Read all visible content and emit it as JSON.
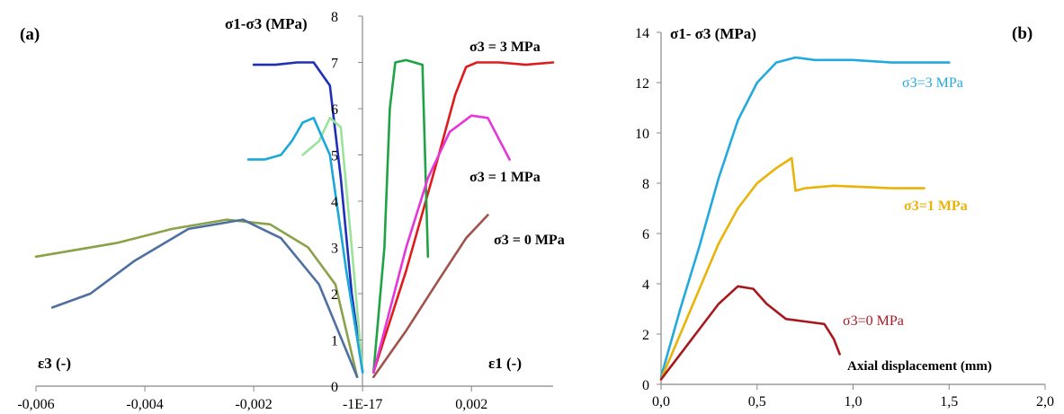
{
  "colors": {
    "blue_dark": "#1f2fb8",
    "green": "#1fa344",
    "red": "#e01b1b",
    "cyan": "#1aa7db",
    "light_green": "#9be39a",
    "magenta": "#e536d9",
    "olive": "#8aa24a",
    "steel_blue": "#4e6fa0",
    "brown": "#a0524c",
    "orange": "#e8b40a",
    "dark_red": "#a8191f",
    "cyan_b": "#24a9df"
  },
  "panel_a": {
    "panel_label": "(a)",
    "ylabel": "σ1-σ3 (MPa)",
    "xlabel_left": "ε3 (-)",
    "xlabel_right": "ε1 (-)",
    "label_s3_3": "σ3 = 3 MPa",
    "label_s3_1": "σ3 = 1 MPa",
    "label_s3_0": "σ3 = 0 MPa"
  },
  "panel_b": {
    "panel_label": "(b)",
    "ylabel": "σ1- σ3 (MPa)",
    "xlabel": "Axial displacement (mm)",
    "label_s3_3": "σ3=3 MPa",
    "label_s3_1": "σ3=1 MPa",
    "label_s3_0": "σ3=0 MPa"
  },
  "chart_data": [
    {
      "type": "line",
      "panel": "(a)",
      "ylabel": "σ1-σ3 (MPa)",
      "xlabel": "ε3 (-) / ε1 (-)",
      "xlim": [
        -0.006,
        0.0035
      ],
      "ylim": [
        0,
        8
      ],
      "x_ticks": [
        "-0,006",
        "-0,004",
        "-0,002",
        "-1E-17",
        "0,002"
      ],
      "y_ticks": [
        "0",
        "1",
        "2",
        "3",
        "4",
        "5",
        "6",
        "7",
        "8"
      ],
      "series": [
        {
          "name": "σ3 = 3 MPa",
          "color": "#e01b1b",
          "x": [
            0.0002,
            0.0008,
            0.0014,
            0.0017,
            0.0019,
            0.0021,
            0.0025,
            0.003,
            0.0035
          ],
          "y": [
            0.3,
            2.5,
            5.0,
            6.3,
            6.9,
            7.0,
            7.0,
            6.95,
            7.0
          ]
        },
        {
          "name": "σ3 = 3 MPa",
          "color": "#1fa344",
          "x": [
            0.0002,
            0.0004,
            0.0005,
            0.0006,
            0.0008,
            0.0011,
            0.0012
          ],
          "y": [
            0.3,
            3.0,
            6.0,
            7.0,
            7.05,
            6.95,
            2.8
          ]
        },
        {
          "name": "σ3 = 3 MPa",
          "color": "#1f2fb8",
          "x": [
            0.0,
            -0.0002,
            -0.0004,
            -0.0006,
            -0.0009,
            -0.0012,
            -0.0016,
            -0.002
          ],
          "y": [
            0.3,
            2.0,
            4.5,
            6.5,
            7.0,
            7.0,
            6.95,
            6.95
          ]
        },
        {
          "name": "σ3 = 1 MPa",
          "color": "#e536d9",
          "x": [
            0.0002,
            0.0008,
            0.0012,
            0.0016,
            0.002,
            0.0023,
            0.0027
          ],
          "y": [
            0.3,
            3.0,
            4.5,
            5.5,
            5.85,
            5.8,
            4.9
          ]
        },
        {
          "name": "σ3 = 1 MPa",
          "color": "#9be39a",
          "x": [
            0.0,
            -0.0002,
            -0.0004,
            -0.0006,
            -0.0008,
            -0.0011
          ],
          "y": [
            0.3,
            3.0,
            5.6,
            5.8,
            5.3,
            5.0
          ]
        },
        {
          "name": "σ3 = 1 MPa",
          "color": "#1aa7db",
          "x": [
            0.0,
            -0.0003,
            -0.0006,
            -0.0009,
            -0.0011,
            -0.0013,
            -0.0015,
            -0.0018,
            -0.0021
          ],
          "y": [
            0.3,
            2.5,
            5.0,
            5.8,
            5.7,
            5.3,
            5.0,
            4.9,
            4.9
          ]
        },
        {
          "name": "σ3 = 0 MPa",
          "color": "#a0524c",
          "x": [
            0.0002,
            0.0008,
            0.0014,
            0.0019,
            0.0023
          ],
          "y": [
            0.2,
            1.2,
            2.3,
            3.2,
            3.7
          ]
        },
        {
          "name": "σ3 = 0 MPa",
          "color": "#8aa24a",
          "x": [
            -0.0001,
            -0.0005,
            -0.001,
            -0.0017,
            -0.0025,
            -0.0035,
            -0.0045,
            -0.006
          ],
          "y": [
            0.2,
            2.2,
            3.0,
            3.5,
            3.6,
            3.4,
            3.1,
            2.8
          ]
        },
        {
          "name": "σ3 = 0 MPa",
          "color": "#4e6fa0",
          "x": [
            -0.0001,
            -0.0008,
            -0.0015,
            -0.0022,
            -0.0032,
            -0.0042,
            -0.005,
            -0.0057
          ],
          "y": [
            0.2,
            2.2,
            3.2,
            3.6,
            3.4,
            2.7,
            2.0,
            1.7
          ]
        }
      ]
    },
    {
      "type": "line",
      "panel": "(b)",
      "ylabel": "σ1- σ3 (MPa)",
      "xlabel": "Axial displacement (mm)",
      "xlim": [
        0,
        2.0
      ],
      "ylim": [
        0,
        14
      ],
      "x_ticks": [
        "0,0",
        "0,5",
        "1,0",
        "1,5",
        "2,0"
      ],
      "y_ticks": [
        "0",
        "2",
        "4",
        "6",
        "8",
        "10",
        "12",
        "14"
      ],
      "series": [
        {
          "name": "σ3=3 MPa",
          "color": "#24a9df",
          "x": [
            0.0,
            0.1,
            0.2,
            0.3,
            0.4,
            0.5,
            0.6,
            0.7,
            0.8,
            1.0,
            1.2,
            1.5
          ],
          "y": [
            0.3,
            3.0,
            5.5,
            8.2,
            10.5,
            12.0,
            12.8,
            13.0,
            12.9,
            12.9,
            12.8,
            12.8
          ]
        },
        {
          "name": "σ3=1 MPa",
          "color": "#e8b40a",
          "x": [
            0.0,
            0.1,
            0.2,
            0.3,
            0.4,
            0.5,
            0.6,
            0.68,
            0.7,
            0.75,
            0.9,
            1.2,
            1.37
          ],
          "y": [
            0.2,
            2.0,
            3.8,
            5.6,
            7.0,
            8.0,
            8.6,
            9.0,
            7.7,
            7.8,
            7.9,
            7.8,
            7.8
          ]
        },
        {
          "name": "σ3=0 MPa",
          "color": "#a8191f",
          "x": [
            0.0,
            0.1,
            0.2,
            0.3,
            0.4,
            0.48,
            0.55,
            0.65,
            0.75,
            0.85,
            0.9,
            0.93
          ],
          "y": [
            0.2,
            1.2,
            2.2,
            3.2,
            3.9,
            3.8,
            3.2,
            2.6,
            2.5,
            2.4,
            1.8,
            1.2
          ]
        }
      ]
    }
  ]
}
